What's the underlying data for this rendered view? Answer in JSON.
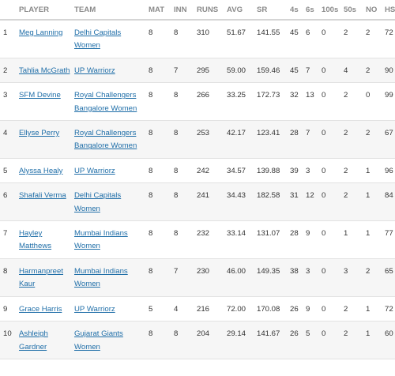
{
  "headers": {
    "rank": "",
    "player": "PLAYER",
    "team": "TEAM",
    "mat": "MAT",
    "inn": "INN",
    "runs": "RUNS",
    "avg": "AVG",
    "sr": "SR",
    "fours": "4s",
    "sixes": "6s",
    "hundreds": "100s",
    "fifties": "50s",
    "not_outs": "NO",
    "highest": "HS"
  },
  "rows": [
    {
      "rank": "1",
      "player": "Meg Lanning",
      "team": "Delhi Capitals Women",
      "mat": "8",
      "inn": "8",
      "runs": "310",
      "avg": "51.67",
      "sr": "141.55",
      "fours": "45",
      "sixes": "6",
      "hundreds": "0",
      "fifties": "2",
      "not_outs": "2",
      "highest": "72"
    },
    {
      "rank": "2",
      "player": "Tahlia McGrath",
      "team": "UP Warriorz",
      "mat": "8",
      "inn": "7",
      "runs": "295",
      "avg": "59.00",
      "sr": "159.46",
      "fours": "45",
      "sixes": "7",
      "hundreds": "0",
      "fifties": "4",
      "not_outs": "2",
      "highest": "90"
    },
    {
      "rank": "3",
      "player": "SFM Devine",
      "team": "Royal Challengers Bangalore Women",
      "mat": "8",
      "inn": "8",
      "runs": "266",
      "avg": "33.25",
      "sr": "172.73",
      "fours": "32",
      "sixes": "13",
      "hundreds": "0",
      "fifties": "2",
      "not_outs": "0",
      "highest": "99"
    },
    {
      "rank": "4",
      "player": "Ellyse Perry",
      "team": "Royal Challengers Bangalore Women",
      "mat": "8",
      "inn": "8",
      "runs": "253",
      "avg": "42.17",
      "sr": "123.41",
      "fours": "28",
      "sixes": "7",
      "hundreds": "0",
      "fifties": "2",
      "not_outs": "2",
      "highest": "67"
    },
    {
      "rank": "5",
      "player": "Alyssa Healy",
      "team": "UP Warriorz",
      "mat": "8",
      "inn": "8",
      "runs": "242",
      "avg": "34.57",
      "sr": "139.88",
      "fours": "39",
      "sixes": "3",
      "hundreds": "0",
      "fifties": "2",
      "not_outs": "1",
      "highest": "96"
    },
    {
      "rank": "6",
      "player": "Shafali Verma",
      "team": "Delhi Capitals Women",
      "mat": "8",
      "inn": "8",
      "runs": "241",
      "avg": "34.43",
      "sr": "182.58",
      "fours": "31",
      "sixes": "12",
      "hundreds": "0",
      "fifties": "2",
      "not_outs": "1",
      "highest": "84"
    },
    {
      "rank": "7",
      "player": "Hayley Matthews",
      "team": "Mumbai Indians Women",
      "mat": "8",
      "inn": "8",
      "runs": "232",
      "avg": "33.14",
      "sr": "131.07",
      "fours": "28",
      "sixes": "9",
      "hundreds": "0",
      "fifties": "1",
      "not_outs": "1",
      "highest": "77"
    },
    {
      "rank": "8",
      "player": "Harmanpreet Kaur",
      "team": "Mumbai Indians Women",
      "mat": "8",
      "inn": "7",
      "runs": "230",
      "avg": "46.00",
      "sr": "149.35",
      "fours": "38",
      "sixes": "3",
      "hundreds": "0",
      "fifties": "3",
      "not_outs": "2",
      "highest": "65"
    },
    {
      "rank": "9",
      "player": "Grace Harris",
      "team": "UP Warriorz",
      "mat": "5",
      "inn": "4",
      "runs": "216",
      "avg": "72.00",
      "sr": "170.08",
      "fours": "26",
      "sixes": "9",
      "hundreds": "0",
      "fifties": "2",
      "not_outs": "1",
      "highest": "72"
    },
    {
      "rank": "10",
      "player": "Ashleigh Gardner",
      "team": "Gujarat Giants Women",
      "mat": "8",
      "inn": "8",
      "runs": "204",
      "avg": "29.14",
      "sr": "141.67",
      "fours": "26",
      "sixes": "5",
      "hundreds": "0",
      "fifties": "2",
      "not_outs": "1",
      "highest": "60"
    }
  ]
}
